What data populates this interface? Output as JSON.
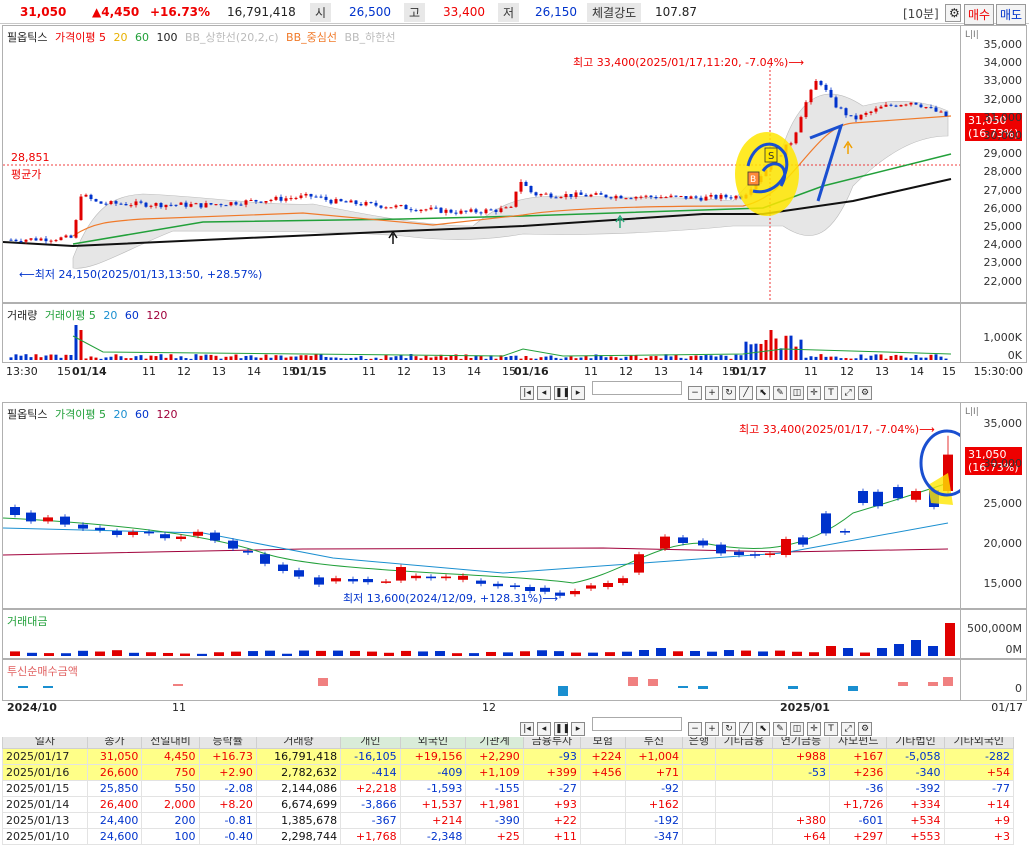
{
  "header": {
    "price": "31,050",
    "change": "▲4,450",
    "rate": "+16.73%",
    "volume": "16,791,418",
    "open_label": "시",
    "open": "26,500",
    "high_label": "고",
    "high": "33,400",
    "low_label": "저",
    "low": "26,150",
    "strength_label": "체결강도",
    "strength": "107.87",
    "interval": "[10분]",
    "buy": "매수",
    "sell": "매도"
  },
  "intraday": {
    "legend": {
      "name": "필옵틱스",
      "price_ma": "가격이평 5",
      "ma20": "20",
      "ma60": "60",
      "ma100": "100",
      "bb_upper": "BB_상한선(20,2,c)",
      "bb_mid": "BB_중심선",
      "bb_lower": "BB_하한선"
    },
    "high_note": "최고 33,400(2025/01/17,11:20, -7.04%)⟶",
    "low_note": "⟵최저 24,150(2025/01/13,13:50, +28.57%)",
    "avg_value": "28,851",
    "avg_label": "평균가",
    "price_tag": "31,050",
    "rate_tag": "(16.73%)",
    "yticks": [
      "35,000",
      "34,000",
      "33,000",
      "32,000",
      "31,000",
      "30,000",
      "29,000",
      "28,000",
      "27,000",
      "26,000",
      "25,000",
      "24,000",
      "23,000",
      "22,000"
    ],
    "vol_legend": {
      "name": "거래량",
      "ma5": "거래이평 5",
      "ma20": "20",
      "ma60": "60",
      "ma120": "120"
    },
    "vol_ticks": [
      "1,000K",
      "0K"
    ],
    "xlabels": [
      "13:30",
      "15",
      "01/14",
      "11",
      "12",
      "13",
      "14",
      "15",
      "01/15",
      "11",
      "12",
      "13",
      "14",
      "15",
      "01/16",
      "11",
      "12",
      "13",
      "14",
      "15",
      "01/17",
      "11",
      "12",
      "13",
      "14",
      "15"
    ],
    "xlabel_end": "15:30:00"
  },
  "daily": {
    "legend": {
      "name": "필옵틱스",
      "price_ma": "가격이평 5",
      "ma20": "20",
      "ma60": "60",
      "ma120": "120"
    },
    "high_note": "최고 33,400(2025/01/17, -7.04%)⟶",
    "low_note": "최저 13,600(2024/12/09, +128.31%)⟶",
    "price_tag": "31,050",
    "rate_tag": "(16.73%)",
    "yticks": [
      "35,000",
      "30,000",
      "25,000",
      "20,000",
      "15,000"
    ],
    "value_legend": "거래대금",
    "value_ticks": [
      "500,000M",
      "0M"
    ],
    "inv_legend": "투신순매수금액",
    "inv_ticks": [
      "0"
    ],
    "xlabels": [
      "2024/10",
      "11",
      "12",
      "2025/01"
    ],
    "xlabel_end": "01/17"
  },
  "table": {
    "headers": [
      "일자",
      "종가",
      "전일대비",
      "등락률",
      "거래량",
      "개인",
      "외국인",
      "기관계",
      "금융투자",
      "보험",
      "투신",
      "은행",
      "기타금융",
      "연기금등",
      "사모펀드",
      "기타법인",
      "기타외국인"
    ],
    "rows": [
      [
        "2025/01/17",
        "31,050",
        "4,450",
        "+16.73",
        "16,791,418",
        "-16,105",
        "+19,156",
        "+2,290",
        "-93",
        "+224",
        "+1,004",
        "",
        "",
        "+988",
        "+167",
        "-5,058",
        "-282"
      ],
      [
        "2025/01/16",
        "26,600",
        "750",
        "+2.90",
        "2,782,632",
        "-414",
        "-409",
        "+1,109",
        "+399",
        "+456",
        "+71",
        "",
        "",
        "-53",
        "+236",
        "-340",
        "+54"
      ],
      [
        "2025/01/15",
        "25,850",
        "550",
        "-2.08",
        "2,144,086",
        "+2,218",
        "-1,593",
        "-155",
        "-27",
        "",
        "-92",
        "",
        "",
        "",
        "-36",
        "-392",
        "-77"
      ],
      [
        "2025/01/14",
        "26,400",
        "2,000",
        "+8.20",
        "6,674,699",
        "-3,866",
        "+1,537",
        "+1,981",
        "+93",
        "",
        "+162",
        "",
        "",
        "",
        "+1,726",
        "+334",
        "+14"
      ],
      [
        "2025/01/13",
        "24,400",
        "200",
        "-0.81",
        "1,385,678",
        "-367",
        "+214",
        "-390",
        "+22",
        "",
        "-192",
        "",
        "",
        "+380",
        "-601",
        "+534",
        "+9"
      ],
      [
        "2025/01/10",
        "24,600",
        "100",
        "-0.40",
        "2,298,744",
        "+1,768",
        "-2,348",
        "+25",
        "+11",
        "",
        "-347",
        "",
        "",
        "+64",
        "+297",
        "+553",
        "+3"
      ]
    ]
  },
  "chart_data": [
    {
      "type": "line",
      "title": "필옵틱스 10분",
      "x": [
        "01/13 13:30",
        "01/14 09:00",
        "01/14 10:00",
        "01/15 09:00",
        "01/16 09:00",
        "01/16 10:00",
        "01/17 09:00",
        "01/17 11:20",
        "01/17 12:00",
        "01/17 14:00",
        "01/17 15:30"
      ],
      "series": [
        {
          "name": "필옵틱스",
          "values": [
            24500,
            26800,
            26300,
            26400,
            27700,
            26700,
            27000,
            33400,
            31500,
            32000,
            31050
          ]
        }
      ],
      "ylim": [
        22000,
        35000
      ]
    },
    {
      "type": "bar",
      "title": "필옵틱스 일봉",
      "x": [
        "2024/10",
        "11",
        "12/09",
        "2025/01/10",
        "01/13",
        "01/14",
        "01/15",
        "01/16",
        "01/17"
      ],
      "series": [
        {
          "name": "필옵틱스",
          "values": [
            23500,
            21000,
            13600,
            24600,
            24400,
            26400,
            25850,
            26600,
            31050
          ]
        }
      ],
      "ylim": [
        11000,
        36000
      ]
    }
  ],
  "colors": {
    "up": "#e00000",
    "down": "#0033cc",
    "highlight": "#ffff00",
    "blue_mark": "#1a4fd0"
  }
}
